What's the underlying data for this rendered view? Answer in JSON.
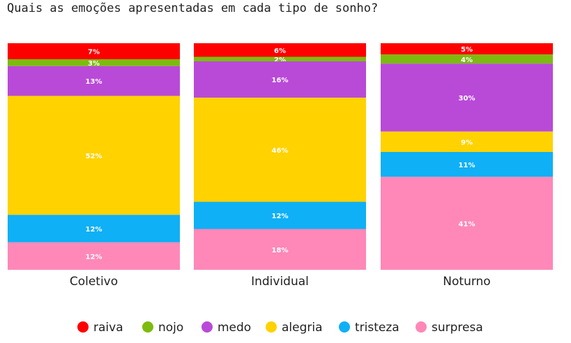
{
  "title": "Quais as emoções apresentadas em cada tipo de sonho?",
  "chart_data": {
    "type": "bar",
    "stacked": true,
    "normalized_percent": true,
    "categories": [
      "Coletivo",
      "Individual",
      "Noturno"
    ],
    "series": [
      {
        "name": "raiva",
        "color": "#ff0000",
        "values": [
          7,
          6,
          5
        ]
      },
      {
        "name": "nojo",
        "color": "#7dbb0f",
        "values": [
          3,
          2,
          4
        ]
      },
      {
        "name": "medo",
        "color": "#b94ad8",
        "values": [
          13,
          16,
          30
        ]
      },
      {
        "name": "alegria",
        "color": "#ffd200",
        "values": [
          52,
          46,
          9
        ]
      },
      {
        "name": "tristeza",
        "color": "#0fb0f5",
        "values": [
          12,
          12,
          11
        ]
      },
      {
        "name": "surpresa",
        "color": "#ff88b8",
        "values": [
          12,
          18,
          41
        ]
      }
    ],
    "legend_position": "bottom",
    "grid": false
  }
}
